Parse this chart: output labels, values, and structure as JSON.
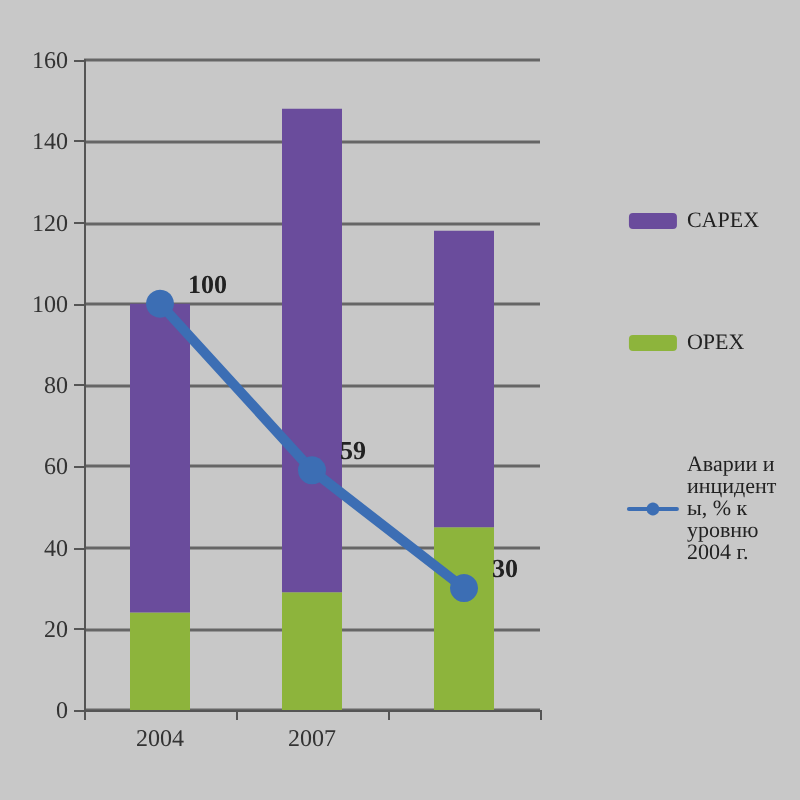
{
  "chart_data": {
    "type": "bar",
    "stacked": true,
    "categories": [
      "2004",
      "2007",
      null
    ],
    "series": [
      {
        "name": "OPEX",
        "color": "#8db43c",
        "values": [
          24,
          29,
          45
        ]
      },
      {
        "name": "CAPEX",
        "color": "#6a4c9c",
        "values": [
          76,
          119,
          73
        ]
      },
      {
        "name": "Аварии и инциденты, % к уровню 2004 г.",
        "type": "line",
        "color": "#3c6eb4",
        "values": [
          100,
          59,
          30
        ],
        "value_labels": [
          "100",
          "59",
          "30"
        ]
      }
    ],
    "ylim": [
      0,
      160
    ],
    "yticks": [
      0,
      20,
      40,
      60,
      80,
      100,
      120,
      140,
      160
    ],
    "grid": "y",
    "legend": "right",
    "marker": "circle"
  }
}
